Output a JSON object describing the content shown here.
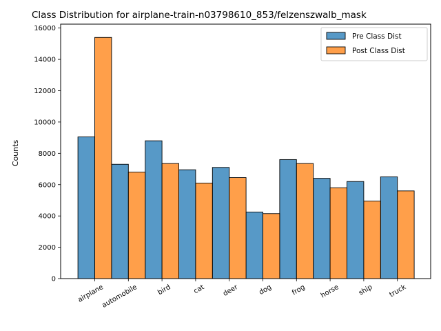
{
  "chart_data": {
    "type": "bar",
    "title": "Class Distribution for airplane-train-n03798610_853/felzenszwalb_mask",
    "xlabel": "",
    "ylabel": "Counts",
    "categories": [
      "airplane",
      "automobile",
      "bird",
      "cat",
      "deer",
      "dog",
      "frog",
      "horse",
      "ship",
      "truck"
    ],
    "series": [
      {
        "name": "Pre Class Dist",
        "color": "#1f77b4",
        "values": [
          9050,
          7300,
          8800,
          6950,
          7100,
          4250,
          7600,
          6400,
          6200,
          6500
        ]
      },
      {
        "name": "Post Class Dist",
        "color": "#ff7f0e",
        "values": [
          15400,
          6800,
          7350,
          6100,
          6450,
          4150,
          7350,
          5800,
          4950,
          5600
        ]
      }
    ],
    "ylim": [
      0,
      16250
    ],
    "yticks": [
      "0",
      "2000",
      "4000",
      "6000",
      "8000",
      "10000",
      "12000",
      "14000",
      "16000"
    ],
    "legend_position": "top-right",
    "grid": false
  }
}
